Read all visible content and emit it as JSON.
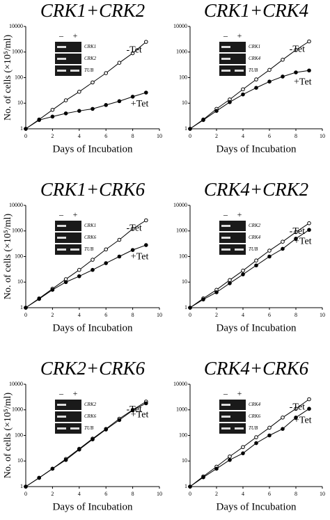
{
  "chart_data": [
    {
      "type": "line",
      "title": "CRK1+CRK2",
      "x_label": "Days of Incubation",
      "y_label": "No. of cells (×10⁵/ml)",
      "x": [
        0,
        1,
        2,
        3,
        4,
        5,
        6,
        7,
        8,
        9
      ],
      "xlim": [
        0,
        10
      ],
      "xticks": [
        0,
        2,
        4,
        6,
        8,
        10
      ],
      "ylim": [
        1,
        10000
      ],
      "yticks": [
        1,
        10,
        100,
        1000,
        10000
      ],
      "y_scale": "log",
      "series": [
        {
          "name": "-Tet",
          "color": "#000000",
          "marker": "open",
          "values": [
            1,
            2.3,
            5.5,
            13,
            28,
            65,
            150,
            380,
            900,
            2500
          ]
        },
        {
          "name": "+Tet",
          "color": "#000000",
          "marker": "filled",
          "values": [
            1,
            2.2,
            3,
            4,
            5,
            6,
            8.5,
            12,
            18,
            26
          ]
        }
      ],
      "inset": {
        "lanes": [
          "–",
          "+"
        ],
        "rows": [
          "CRK1",
          "CRK2",
          "TUB"
        ]
      }
    },
    {
      "type": "line",
      "title": "CRK1+CRK4",
      "x_label": "Days of Incubation",
      "x": [
        0,
        1,
        2,
        3,
        4,
        5,
        6,
        7,
        8,
        9
      ],
      "xlim": [
        0,
        10
      ],
      "xticks": [
        0,
        2,
        4,
        6,
        8,
        10
      ],
      "ylim": [
        1,
        10000
      ],
      "yticks": [
        1,
        10,
        100,
        1000,
        10000
      ],
      "y_scale": "log",
      "series": [
        {
          "name": "-Tet",
          "color": "#000000",
          "marker": "open",
          "values": [
            1,
            2.3,
            6,
            14,
            35,
            85,
            200,
            500,
            1200,
            2600
          ]
        },
        {
          "name": "+Tet",
          "color": "#000000",
          "marker": "filled",
          "values": [
            1,
            2.2,
            5,
            11,
            22,
            40,
            70,
            110,
            160,
            190
          ]
        }
      ],
      "inset": {
        "lanes": [
          "–",
          "+"
        ],
        "rows": [
          "CRK1",
          "CRK4",
          "TUB"
        ]
      }
    },
    {
      "type": "line",
      "title": "CRK1+CRK6",
      "x_label": "Days of Incubation",
      "y_label": "No. of cells (×10⁵/ml)",
      "x": [
        0,
        1,
        2,
        3,
        4,
        5,
        6,
        7,
        8,
        9
      ],
      "xlim": [
        0,
        10
      ],
      "xticks": [
        0,
        2,
        4,
        6,
        8,
        10
      ],
      "ylim": [
        1,
        10000
      ],
      "yticks": [
        1,
        10,
        100,
        1000,
        10000
      ],
      "y_scale": "log",
      "series": [
        {
          "name": "-Tet",
          "color": "#000000",
          "marker": "open",
          "values": [
            1,
            2.3,
            5.5,
            13,
            30,
            75,
            190,
            450,
            1200,
            2600
          ]
        },
        {
          "name": "+Tet",
          "color": "#000000",
          "marker": "filled",
          "values": [
            1,
            2.2,
            5,
            10,
            17,
            30,
            55,
            100,
            180,
            280
          ]
        }
      ],
      "inset": {
        "lanes": [
          "–",
          "+"
        ],
        "rows": [
          "CRK1",
          "CRK6",
          "TUB"
        ]
      }
    },
    {
      "type": "line",
      "title": "CRK4+CRK2",
      "x_label": "Days of Incubation",
      "x": [
        0,
        1,
        2,
        3,
        4,
        5,
        6,
        7,
        8,
        9
      ],
      "xlim": [
        0,
        10
      ],
      "xticks": [
        0,
        2,
        4,
        6,
        8,
        10
      ],
      "ylim": [
        1,
        10000
      ],
      "yticks": [
        1,
        10,
        100,
        1000,
        10000
      ],
      "y_scale": "log",
      "series": [
        {
          "name": "-Tet",
          "color": "#000000",
          "marker": "open",
          "values": [
            1,
            2.3,
            5,
            12,
            28,
            70,
            170,
            380,
            900,
            2000
          ]
        },
        {
          "name": "+Tet",
          "color": "#000000",
          "marker": "filled",
          "values": [
            1,
            2.1,
            4,
            9,
            20,
            45,
            100,
            200,
            500,
            1100
          ]
        }
      ],
      "inset": {
        "lanes": [
          "–",
          "+"
        ],
        "rows": [
          "CRK2",
          "CRK4",
          "TUB"
        ]
      }
    },
    {
      "type": "line",
      "title": "CRK2+CRK6",
      "x_label": "Days of Incubation",
      "y_label": "No. of cells (×10⁵/ml)",
      "x": [
        0,
        1,
        2,
        3,
        4,
        5,
        6,
        7,
        8,
        9
      ],
      "xlim": [
        0,
        10
      ],
      "xticks": [
        0,
        2,
        4,
        6,
        8,
        10
      ],
      "ylim": [
        1,
        10000
      ],
      "yticks": [
        1,
        10,
        100,
        1000,
        10000
      ],
      "y_scale": "log",
      "series": [
        {
          "name": "-Tet",
          "color": "#000000",
          "marker": "open",
          "values": [
            1,
            2.2,
            5,
            12,
            30,
            75,
            180,
            450,
            1000,
            2100
          ]
        },
        {
          "name": "+Tet",
          "color": "#000000",
          "marker": "filled",
          "values": [
            1,
            2.2,
            5,
            11,
            28,
            70,
            170,
            400,
            950,
            1800
          ]
        }
      ],
      "inset": {
        "lanes": [
          "–",
          "+"
        ],
        "rows": [
          "CRK2",
          "CRK6",
          "TUB"
        ]
      }
    },
    {
      "type": "line",
      "title": "CRK4+CRK6",
      "x_label": "Days of Incubation",
      "x": [
        0,
        1,
        2,
        3,
        4,
        5,
        6,
        7,
        8,
        9
      ],
      "xlim": [
        0,
        10
      ],
      "xticks": [
        0,
        2,
        4,
        6,
        8,
        10
      ],
      "ylim": [
        1,
        10000
      ],
      "yticks": [
        1,
        10,
        100,
        1000,
        10000
      ],
      "y_scale": "log",
      "series": [
        {
          "name": "-Tet",
          "color": "#000000",
          "marker": "open",
          "values": [
            1,
            2.5,
            6,
            15,
            35,
            85,
            200,
            500,
            1100,
            2600
          ]
        },
        {
          "name": "+Tet",
          "color": "#000000",
          "marker": "filled",
          "values": [
            1,
            2.3,
            5,
            11,
            20,
            50,
            100,
            180,
            500,
            1100
          ]
        }
      ],
      "inset": {
        "lanes": [
          "–",
          "+"
        ],
        "rows": [
          "CRK4",
          "CRK6",
          "TUB"
        ]
      }
    }
  ]
}
